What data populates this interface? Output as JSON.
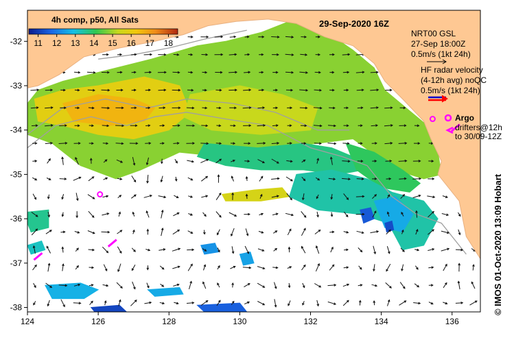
{
  "title": "29-Sep-2020 16Z",
  "colorbar": {
    "label": "4h comp, p50, All Sats",
    "ticks": [
      "11",
      "12",
      "13",
      "14",
      "15",
      "16",
      "17",
      "18"
    ],
    "range": [
      10.5,
      18.5
    ]
  },
  "legend": {
    "gsl": [
      "NRT00 GSL",
      "27-Sep 18:00Z",
      "0.5m/s (1kt 24h)"
    ],
    "hf": [
      "HF radar velocity",
      "(4-12h avg) noQC",
      "0.5m/s (1kt 24h)"
    ],
    "argo_label": "Argo",
    "drifters": [
      "drifters@12h",
      "to 30/09-12Z"
    ]
  },
  "credit": "© IMOS 01-Oct-2020 13:09 Hobart",
  "axes": {
    "x_ticks": [
      124,
      126,
      128,
      130,
      132,
      134,
      136
    ],
    "y_ticks": [
      -32,
      -33,
      -34,
      -35,
      -36,
      -37,
      -38
    ],
    "xlim": [
      124,
      136.8
    ],
    "ylim": [
      -38.1,
      -31.3
    ]
  },
  "colors": {
    "land": "#fec893",
    "ocean_blank": "#ffffff",
    "argo": "#ff00ff",
    "hf_arrow": "#ff0000",
    "hf_arrow_shaft": "#0000cc",
    "depth_contour": "#a0a0a0"
  },
  "sst_patches": [
    {
      "name": "shelf-warm",
      "temp": 14.8,
      "poly": [
        [
          124.3,
          -33.1
        ],
        [
          125,
          -32.9
        ],
        [
          126,
          -32.7
        ],
        [
          127.5,
          -32.4
        ],
        [
          128.8,
          -32.1
        ],
        [
          129.6,
          -32.0
        ],
        [
          130.6,
          -31.8
        ],
        [
          131.4,
          -31.55
        ],
        [
          132.3,
          -31.7
        ],
        [
          133.2,
          -32.2
        ],
        [
          133.8,
          -32.6
        ],
        [
          134.1,
          -33.1
        ],
        [
          134.7,
          -33.5
        ],
        [
          135.3,
          -33.9
        ],
        [
          135.6,
          -34.5
        ],
        [
          135.7,
          -35.0
        ],
        [
          135.2,
          -35.1
        ],
        [
          134.4,
          -34.9
        ],
        [
          133.2,
          -34.2
        ],
        [
          132.2,
          -34.3
        ],
        [
          131,
          -34.4
        ],
        [
          129.5,
          -34.6
        ],
        [
          128.3,
          -34.5
        ],
        [
          127.2,
          -34.9
        ],
        [
          126.5,
          -35.1
        ],
        [
          125.5,
          -34.8
        ],
        [
          124.7,
          -34.3
        ],
        [
          124.0,
          -34.1
        ],
        [
          124.0,
          -33.4
        ]
      ]
    },
    {
      "name": "bight-west-warm",
      "temp": 15.9,
      "poly": [
        [
          124.2,
          -33.3
        ],
        [
          125,
          -33.1
        ],
        [
          126,
          -33.0
        ],
        [
          127.3,
          -32.8
        ],
        [
          128.3,
          -33.0
        ],
        [
          128.6,
          -33.6
        ],
        [
          128.0,
          -34.0
        ],
        [
          127.0,
          -34.2
        ],
        [
          126.0,
          -34.1
        ],
        [
          125.0,
          -33.9
        ],
        [
          124.3,
          -33.8
        ]
      ]
    },
    {
      "name": "bight-core-warm",
      "temp": 16.6,
      "poly": [
        [
          125.0,
          -33.4
        ],
        [
          126.0,
          -33.2
        ],
        [
          127.0,
          -33.3
        ],
        [
          127.6,
          -33.5
        ],
        [
          127.3,
          -33.8
        ],
        [
          126.3,
          -33.9
        ],
        [
          125.3,
          -33.8
        ]
      ]
    },
    {
      "name": "mid-bight-mild",
      "temp": 15.3,
      "poly": [
        [
          128.6,
          -33.2
        ],
        [
          130,
          -33.0
        ],
        [
          131.2,
          -33.2
        ],
        [
          132.2,
          -33.5
        ],
        [
          132.0,
          -34.0
        ],
        [
          130.6,
          -34.1
        ],
        [
          129.2,
          -34.0
        ],
        [
          128.4,
          -33.7
        ]
      ]
    },
    {
      "name": "front-green",
      "temp": 13.7,
      "poly": [
        [
          129.0,
          -34.3
        ],
        [
          130.5,
          -34.4
        ],
        [
          131.8,
          -34.3
        ],
        [
          132.6,
          -34.4
        ],
        [
          133.2,
          -34.6
        ],
        [
          133.5,
          -34.9
        ],
        [
          132.8,
          -35.0
        ],
        [
          131.8,
          -34.9
        ],
        [
          130.6,
          -34.9
        ],
        [
          129.6,
          -34.8
        ],
        [
          128.8,
          -34.6
        ]
      ]
    },
    {
      "name": "gulf-green",
      "temp": 14.0,
      "poly": [
        [
          133.0,
          -34.3
        ],
        [
          133.8,
          -34.5
        ],
        [
          134.6,
          -34.9
        ],
        [
          135.1,
          -35.2
        ],
        [
          134.8,
          -35.4
        ],
        [
          134.0,
          -35.3
        ],
        [
          133.3,
          -34.9
        ]
      ]
    },
    {
      "name": "front-east-green",
      "temp": 13.4,
      "poly": [
        [
          131.6,
          -35.0
        ],
        [
          132.6,
          -34.9
        ],
        [
          133.6,
          -35.1
        ],
        [
          134.3,
          -35.4
        ],
        [
          135.2,
          -35.6
        ],
        [
          135.6,
          -36.0
        ],
        [
          135.2,
          -36.6
        ],
        [
          134.6,
          -36.7
        ],
        [
          134.2,
          -36.1
        ],
        [
          133.4,
          -35.9
        ],
        [
          132.2,
          -35.8
        ],
        [
          131.4,
          -35.5
        ]
      ]
    },
    {
      "name": "southeast-cyan",
      "temp": 12.6,
      "poly": [
        [
          133.8,
          -35.6
        ],
        [
          134.4,
          -35.5
        ],
        [
          134.9,
          -35.9
        ],
        [
          134.6,
          -36.3
        ],
        [
          134.1,
          -36.2
        ]
      ]
    },
    {
      "name": "blue-patch-a",
      "temp": 11.5,
      "poly": [
        [
          133.4,
          -35.8
        ],
        [
          133.7,
          -35.75
        ],
        [
          133.8,
          -36.0
        ],
        [
          133.5,
          -36.1
        ]
      ]
    },
    {
      "name": "yellow-filament",
      "temp": 15.6,
      "poly": [
        [
          129.5,
          -35.45
        ],
        [
          130.4,
          -35.35
        ],
        [
          131.2,
          -35.3
        ],
        [
          131.4,
          -35.5
        ],
        [
          130.6,
          -35.6
        ],
        [
          129.6,
          -35.6
        ]
      ]
    },
    {
      "name": "west-green",
      "temp": 13.6,
      "poly": [
        [
          124.0,
          -35.85
        ],
        [
          124.6,
          -35.8
        ],
        [
          124.6,
          -36.2
        ],
        [
          124.1,
          -36.3
        ],
        [
          124.0,
          -36.1
        ]
      ]
    },
    {
      "name": "west-green-b",
      "temp": 13.2,
      "poly": [
        [
          124.0,
          -36.6
        ],
        [
          124.4,
          -36.5
        ],
        [
          124.5,
          -36.7
        ],
        [
          124.1,
          -36.8
        ]
      ]
    },
    {
      "name": "sw-cyan",
      "temp": 12.7,
      "poly": [
        [
          124.5,
          -37.5
        ],
        [
          125.5,
          -37.45
        ],
        [
          126.0,
          -37.6
        ],
        [
          125.6,
          -37.8
        ],
        [
          124.7,
          -37.8
        ]
      ]
    },
    {
      "name": "south-cyan",
      "temp": 12.5,
      "poly": [
        [
          130.0,
          -36.8
        ],
        [
          130.3,
          -36.75
        ],
        [
          130.4,
          -37.0
        ],
        [
          130.1,
          -37.05
        ]
      ]
    },
    {
      "name": "south-cyan-b",
      "temp": 12.3,
      "poly": [
        [
          128.9,
          -36.6
        ],
        [
          129.3,
          -36.55
        ],
        [
          129.4,
          -36.75
        ],
        [
          129.0,
          -36.8
        ]
      ]
    },
    {
      "name": "se-cyan-b",
      "temp": 12.6,
      "poly": [
        [
          127.4,
          -37.6
        ],
        [
          128.3,
          -37.55
        ],
        [
          128.4,
          -37.7
        ],
        [
          127.6,
          -37.75
        ]
      ]
    },
    {
      "name": "blue-bottom",
      "temp": 11.2,
      "poly": [
        [
          125.8,
          -38.0
        ],
        [
          126.6,
          -37.95
        ],
        [
          126.8,
          -38.1
        ],
        [
          125.9,
          -38.1
        ]
      ]
    },
    {
      "name": "blue-bottom-b",
      "temp": 11.6,
      "poly": [
        [
          128.8,
          -37.95
        ],
        [
          130.0,
          -37.9
        ],
        [
          130.2,
          -38.1
        ],
        [
          129.0,
          -38.1
        ]
      ]
    },
    {
      "name": "blue-mid",
      "temp": 11.3,
      "poly": [
        [
          134.1,
          -36.1
        ],
        [
          134.3,
          -36.05
        ],
        [
          134.35,
          -36.25
        ],
        [
          134.15,
          -36.3
        ]
      ]
    }
  ],
  "land": [
    {
      "name": "southern-australia",
      "poly": [
        [
          124,
          -31.3
        ],
        [
          136.8,
          -31.3
        ],
        [
          136.8,
          -36.9
        ],
        [
          136.4,
          -36.4
        ],
        [
          136.2,
          -35.6
        ],
        [
          135.6,
          -35.0
        ],
        [
          135.7,
          -34.7
        ],
        [
          135.4,
          -34.2
        ],
        [
          135.2,
          -33.8
        ],
        [
          134.6,
          -33.3
        ],
        [
          134.1,
          -32.9
        ],
        [
          133.8,
          -32.5
        ],
        [
          133.2,
          -32.1
        ],
        [
          132.4,
          -31.9
        ],
        [
          131.6,
          -31.6
        ],
        [
          130.8,
          -31.5
        ],
        [
          129.9,
          -31.55
        ],
        [
          129.1,
          -31.65
        ],
        [
          128.4,
          -31.85
        ],
        [
          127.6,
          -32.0
        ],
        [
          126.6,
          -32.15
        ],
        [
          125.6,
          -32.35
        ],
        [
          124.9,
          -32.75
        ],
        [
          124.3,
          -33.0
        ],
        [
          124,
          -33.05
        ]
      ]
    }
  ],
  "drifters": [
    {
      "lon": 124.3,
      "lat": -36.85
    },
    {
      "lon": 126.4,
      "lat": -36.55
    },
    {
      "lon": 136.1,
      "lat": -33.95
    }
  ],
  "argo": [
    {
      "lon": 126.05,
      "lat": -35.45
    },
    {
      "lon": 135.45,
      "lat": -33.75
    }
  ],
  "gsl_arrow_m_s": 0.5,
  "arrow_grid_spacing_deg": 0.4
}
